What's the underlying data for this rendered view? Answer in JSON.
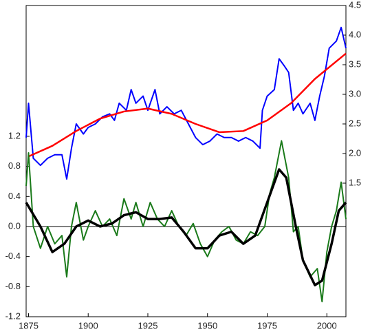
{
  "chart_data": {
    "type": "line",
    "xlim": [
      1874,
      2008
    ],
    "xticks": [
      1875,
      1900,
      1925,
      1950,
      1975,
      2000
    ],
    "ylim": [
      -1.2,
      2.94
    ],
    "yticks": [
      -1.2,
      -0.8,
      -0.4,
      0.0,
      0.4,
      0.8,
      1.2
    ],
    "y2lim": [
      -0.756,
      4.5
    ],
    "y2ticks": [
      1.5,
      2.0,
      2.5,
      3.0,
      3.5,
      4.0,
      4.5
    ],
    "zero_line": 0,
    "series": [
      {
        "color": "#0000ff",
        "axis": "y2",
        "width": 2,
        "x": [
          1874,
          1875,
          1877,
          1880,
          1883,
          1886,
          1889,
          1891,
          1893,
          1895,
          1898,
          1900,
          1903,
          1906,
          1909,
          1911,
          1913,
          1916,
          1918,
          1920,
          1923,
          1925,
          1928,
          1930,
          1933,
          1936,
          1939,
          1942,
          1945,
          1948,
          1951,
          1954,
          1957,
          1960,
          1963,
          1966,
          1969,
          1972,
          1973,
          1975,
          1978,
          1980,
          1982,
          1984,
          1986,
          1988,
          1990,
          1993,
          1995,
          1997,
          1999,
          2001,
          2004,
          2006,
          2008
        ],
        "values": [
          2.27,
          2.85,
          1.92,
          1.8,
          1.92,
          1.98,
          1.98,
          1.57,
          2.09,
          2.5,
          2.33,
          2.44,
          2.5,
          2.62,
          2.67,
          2.56,
          2.85,
          2.73,
          3.08,
          2.85,
          2.97,
          2.73,
          3.08,
          2.67,
          2.79,
          2.67,
          2.73,
          2.5,
          2.27,
          2.15,
          2.21,
          2.33,
          2.27,
          2.27,
          2.21,
          2.27,
          2.21,
          2.09,
          2.73,
          2.97,
          3.08,
          3.6,
          3.49,
          3.37,
          2.73,
          2.85,
          2.67,
          2.85,
          2.56,
          2.97,
          3.31,
          3.78,
          3.9,
          4.13,
          3.78
        ]
      },
      {
        "color": "#ff0000",
        "axis": "y2",
        "width": 2.5,
        "x": [
          1875,
          1885,
          1895,
          1905,
          1915,
          1925,
          1935,
          1945,
          1955,
          1965,
          1975,
          1985,
          1995,
          2008
        ],
        "values": [
          1.95,
          2.13,
          2.38,
          2.59,
          2.71,
          2.76,
          2.67,
          2.5,
          2.36,
          2.38,
          2.56,
          2.85,
          3.26,
          3.69
        ]
      },
      {
        "color": "#1a7a1a",
        "axis": "y",
        "width": 2,
        "x": [
          1874,
          1875,
          1877,
          1880,
          1883,
          1886,
          1889,
          1891,
          1893,
          1895,
          1898,
          1900,
          1903,
          1906,
          1909,
          1912,
          1915,
          1918,
          1920,
          1923,
          1926,
          1929,
          1932,
          1935,
          1938,
          1941,
          1944,
          1947,
          1950,
          1953,
          1956,
          1959,
          1962,
          1965,
          1968,
          1971,
          1974,
          1976,
          1978,
          1981,
          1984,
          1986,
          1988,
          1990,
          1993,
          1996,
          1998,
          2000,
          2002,
          2004,
          2006,
          2008
        ],
        "values": [
          0.54,
          0.98,
          0,
          -0.29,
          0,
          -0.23,
          -0.12,
          -0.67,
          0,
          0.32,
          -0.18,
          0,
          0.21,
          0,
          0.1,
          -0.12,
          0.37,
          0.1,
          0.32,
          0,
          0.32,
          0.1,
          0,
          0.21,
          0,
          -0.12,
          0.04,
          -0.23,
          -0.4,
          -0.18,
          -0.07,
          0,
          -0.18,
          -0.23,
          -0.07,
          -0.12,
          0,
          0.43,
          0.65,
          1.14,
          0.65,
          -0.07,
          0,
          -0.45,
          -0.67,
          -0.56,
          -1.0,
          -0.34,
          0,
          0.21,
          0.59,
          0.1
        ]
      },
      {
        "color": "#000000",
        "axis": "y",
        "width": 3.5,
        "x": [
          1874,
          1880,
          1885,
          1890,
          1895,
          1900,
          1905,
          1910,
          1915,
          1920,
          1925,
          1930,
          1935,
          1940,
          1945,
          1950,
          1955,
          1960,
          1965,
          1970,
          1975,
          1980,
          1983,
          1987,
          1990,
          1995,
          1998,
          2002,
          2005,
          2008
        ],
        "values": [
          0.32,
          0,
          -0.34,
          -0.23,
          0,
          0.08,
          0,
          0.04,
          0.15,
          0.19,
          0.1,
          0.1,
          0.12,
          -0.07,
          -0.29,
          -0.29,
          -0.12,
          -0.07,
          -0.23,
          -0.12,
          0.32,
          0.76,
          0.65,
          0,
          -0.45,
          -0.78,
          -0.72,
          -0.23,
          0.21,
          0.32
        ]
      }
    ]
  }
}
